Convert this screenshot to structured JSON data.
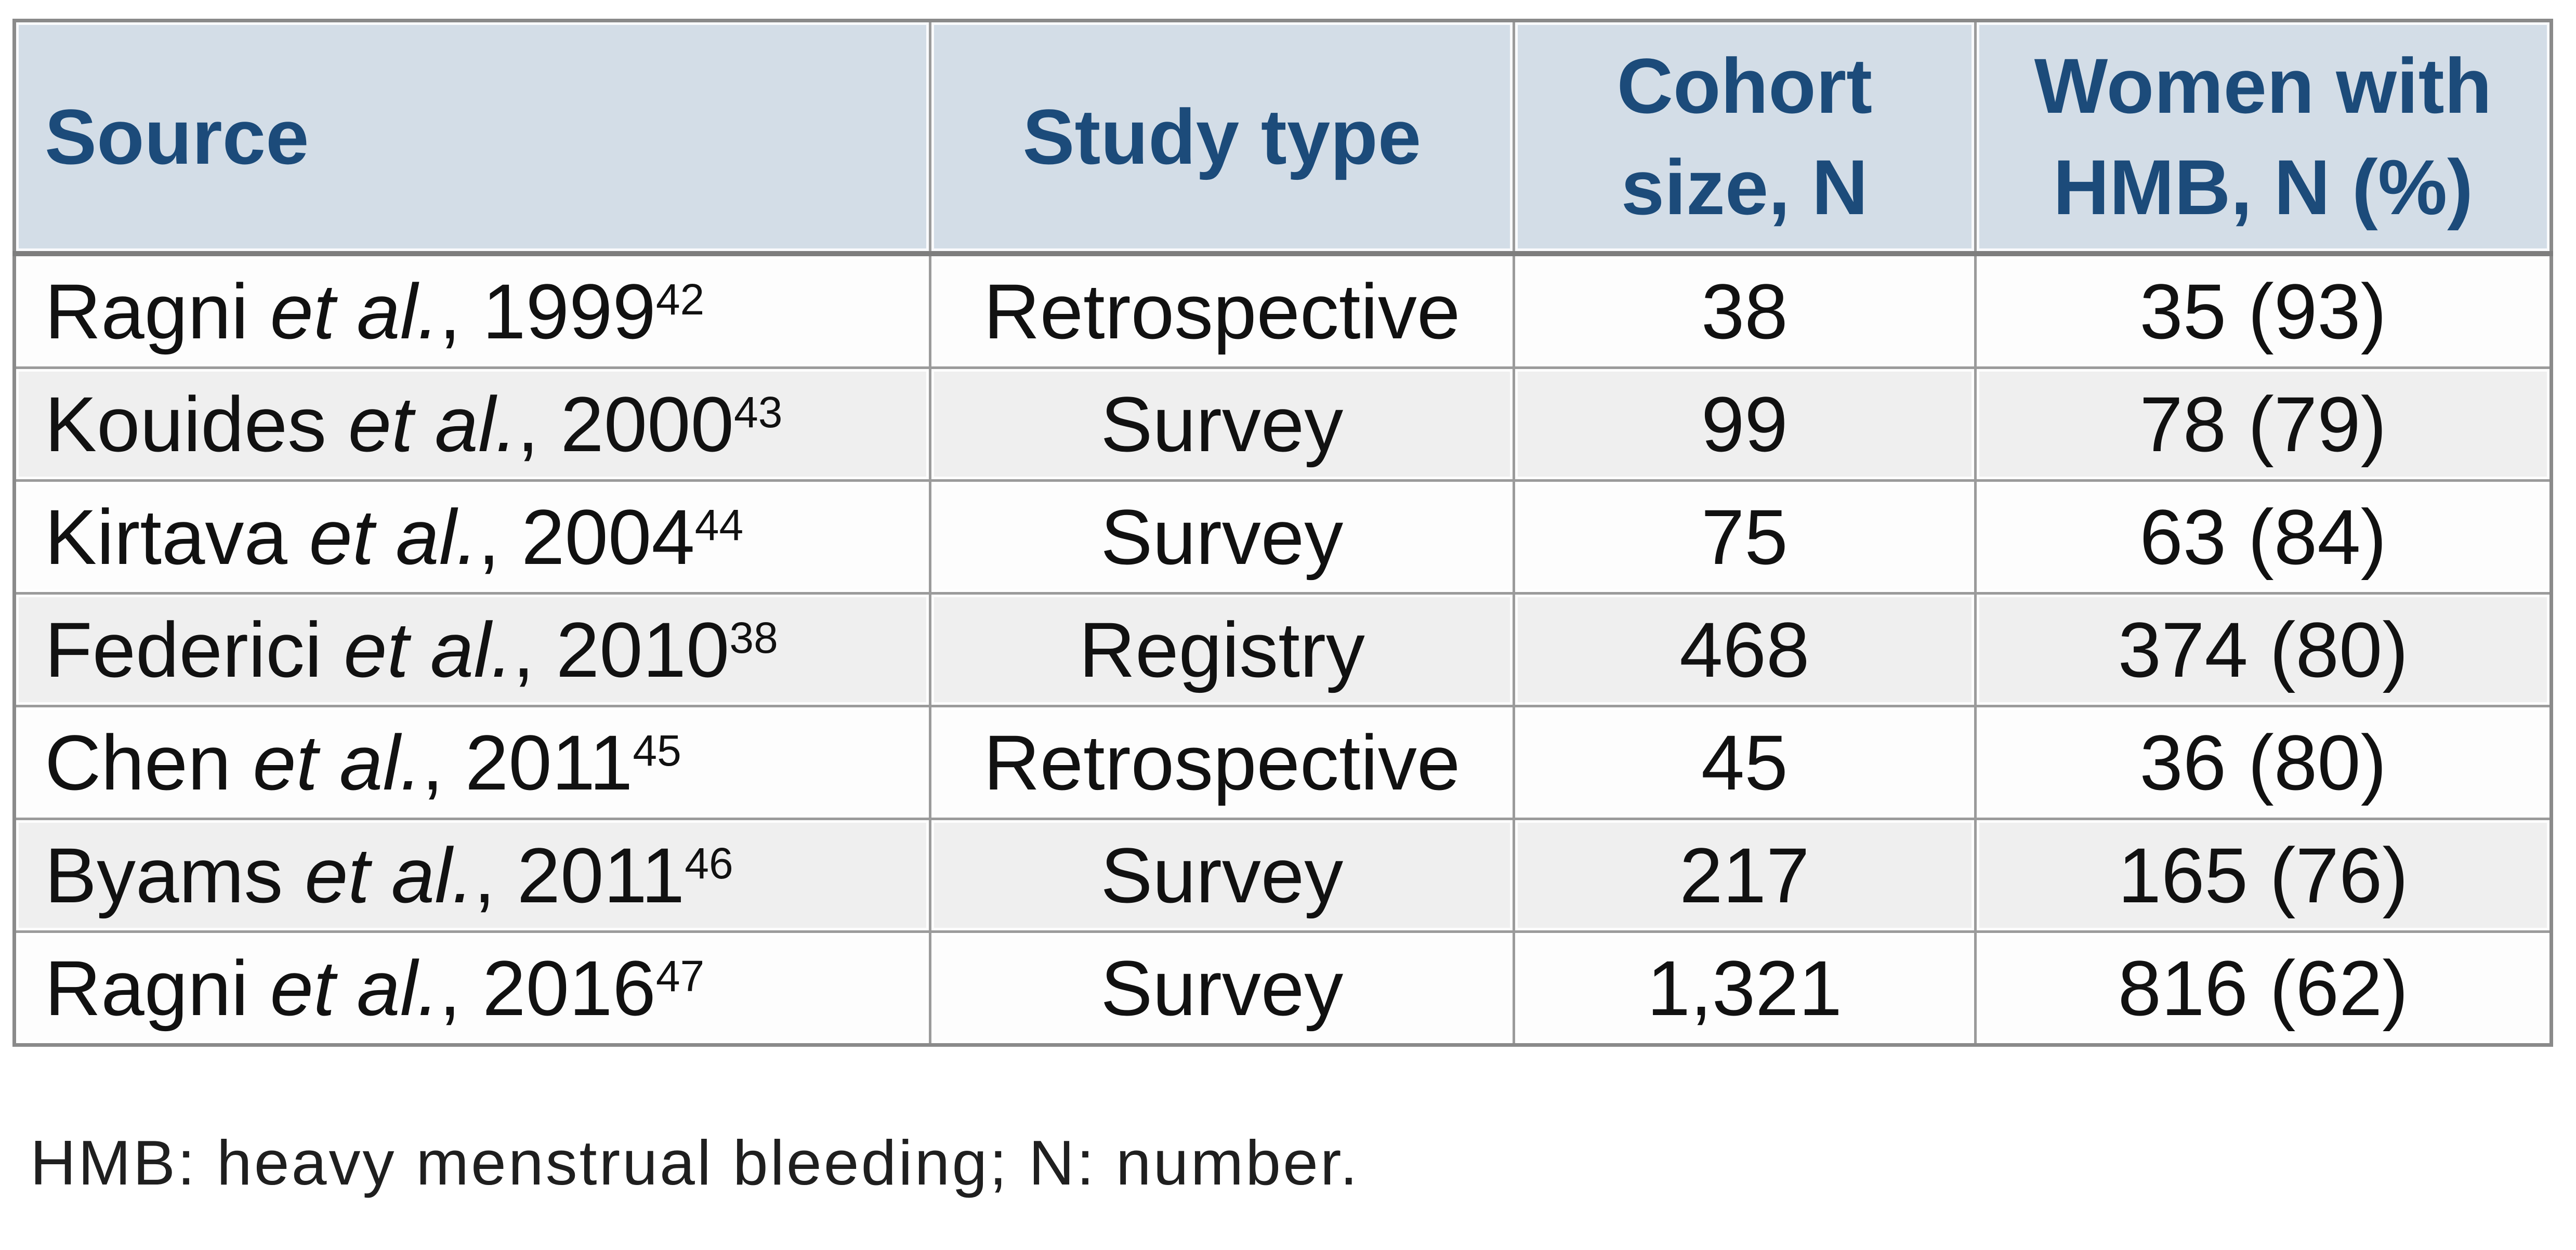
{
  "table": {
    "header": {
      "source": "Source",
      "study_type": "Study type",
      "cohort_size": "Cohort size, N",
      "women_hmb": "Women with HMB, N (%)"
    },
    "rows": [
      {
        "author": "Ragni ",
        "etal": "et al.",
        "year": ", 1999",
        "ref": "42",
        "study_type": "Retrospective",
        "cohort_size": "38",
        "women_hmb": "35 (93)"
      },
      {
        "author": "Kouides ",
        "etal": "et al.",
        "year": ", 2000",
        "ref": "43",
        "study_type": "Survey",
        "cohort_size": "99",
        "women_hmb": "78 (79)"
      },
      {
        "author": "Kirtava ",
        "etal": "et al.",
        "year": ", 2004",
        "ref": "44",
        "study_type": "Survey",
        "cohort_size": "75",
        "women_hmb": "63 (84)"
      },
      {
        "author": "Federici ",
        "etal": "et al.",
        "year": ", 2010",
        "ref": "38",
        "study_type": "Registry",
        "cohort_size": "468",
        "women_hmb": "374 (80)"
      },
      {
        "author": "Chen ",
        "etal": "et al.",
        "year": ", 2011",
        "ref": "45",
        "study_type": "Retrospective",
        "cohort_size": "45",
        "women_hmb": "36 (80)"
      },
      {
        "author": "Byams ",
        "etal": "et al.",
        "year": ", 2011",
        "ref": "46",
        "study_type": "Survey",
        "cohort_size": "217",
        "women_hmb": "165 (76)"
      },
      {
        "author": "Ragni ",
        "etal": "et al.",
        "year": ", 2016",
        "ref": "47",
        "study_type": "Survey",
        "cohort_size": "1,321",
        "women_hmb": "816 (62)"
      }
    ]
  },
  "footnote": "HMB: heavy menstrual bleeding; N: number.",
  "colors": {
    "header_bg": "#d3dde7",
    "header_text": "#1c4b7a",
    "row_alt_bg": "#efefef",
    "border": "#9b9b9b"
  }
}
